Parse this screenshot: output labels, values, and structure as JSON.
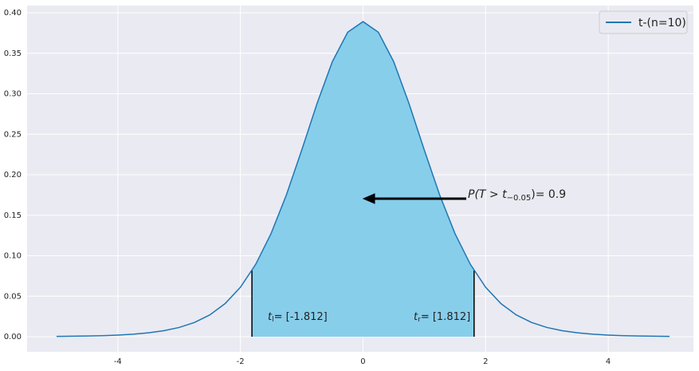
{
  "chart_data": {
    "type": "line",
    "x": [
      -5,
      -4.75,
      -4.5,
      -4.25,
      -4,
      -3.75,
      -3.5,
      -3.25,
      -3,
      -2.75,
      -2.5,
      -2.25,
      -2,
      -1.75,
      -1.5,
      -1.25,
      -1,
      -0.75,
      -0.5,
      -0.25,
      0,
      0.25,
      0.5,
      0.75,
      1,
      1.25,
      1.5,
      1.75,
      2,
      2.25,
      2.5,
      2.75,
      3,
      3.25,
      3.5,
      3.75,
      4,
      4.25,
      4.5,
      4.75,
      5
    ],
    "series": [
      {
        "name": "t-(n=10)",
        "color": "#1f77b4",
        "values": [
          0.0004,
          0.0006,
          0.0009,
          0.0013,
          0.002,
          0.0031,
          0.0048,
          0.0074,
          0.0114,
          0.0176,
          0.0269,
          0.0409,
          0.0611,
          0.0895,
          0.1274,
          0.1751,
          0.2304,
          0.288,
          0.3397,
          0.376,
          0.3891,
          0.376,
          0.3397,
          0.288,
          0.2304,
          0.1751,
          0.1274,
          0.0895,
          0.0611,
          0.0409,
          0.0269,
          0.0176,
          0.0114,
          0.0074,
          0.0048,
          0.0031,
          0.002,
          0.0013,
          0.0009,
          0.0006,
          0.0004
        ]
      }
    ],
    "region": {
      "x": [
        -1.812,
        1.812
      ],
      "heights": [
        0.0816,
        0.0816
      ],
      "color": "#87ceeb"
    },
    "annotations": [
      {
        "main": "P(T > t",
        "sub": "−0.05",
        "rest": ")= 0.9"
      },
      {
        "main": "t",
        "sub": "l",
        "rest": "= [-1.812]"
      },
      {
        "main": "t",
        "sub": "r",
        "rest": "= [1.812]"
      }
    ],
    "xlim": [
      -5.48,
      5.39
    ],
    "ylim": [
      -0.0187,
      0.4089
    ],
    "xticks": [
      -4,
      -2,
      0,
      2,
      4
    ],
    "yticks": [
      {
        "value": 0,
        "label": "0.00"
      },
      {
        "value": 0.05,
        "label": "0.05"
      },
      {
        "value": 0.1,
        "label": "0.10"
      },
      {
        "value": 0.15,
        "label": "0.15"
      },
      {
        "value": 0.2,
        "label": "0.20"
      },
      {
        "value": 0.25,
        "label": "0.25"
      },
      {
        "value": 0.3,
        "label": "0.30"
      },
      {
        "value": 0.35,
        "label": "0.35"
      },
      {
        "value": 0.4,
        "label": "0.40"
      }
    ],
    "grid": true,
    "legend": "upper right"
  }
}
